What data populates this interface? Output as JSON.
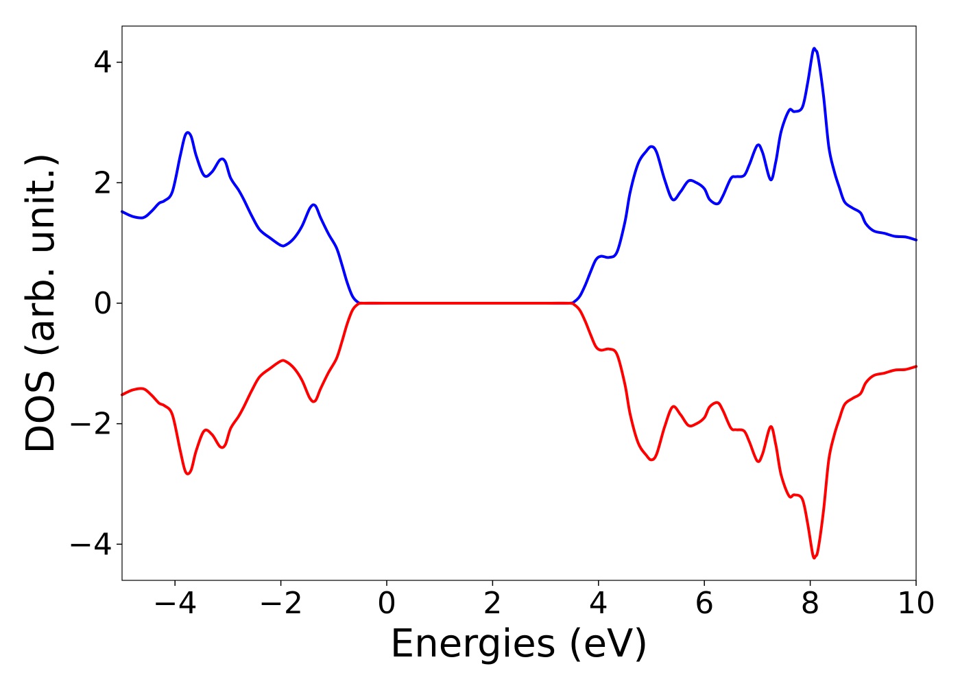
{
  "chart_data": {
    "type": "line",
    "title": "",
    "xlabel": "Energies (eV)",
    "ylabel": "DOS (arb. unit.)",
    "xlim": [
      -5,
      10
    ],
    "ylim": [
      -4.6,
      4.6
    ],
    "xticks": [
      -4,
      -2,
      0,
      2,
      4,
      6,
      8,
      10
    ],
    "xtick_labels": [
      "−4",
      "−2",
      "0",
      "2",
      "4",
      "6",
      "8",
      "10"
    ],
    "yticks": [
      4,
      2,
      0,
      -2,
      -4
    ],
    "ytick_labels": [
      "4",
      "2",
      "0",
      "−2",
      "−4"
    ],
    "grid": false,
    "legend": "none",
    "series": [
      {
        "color": "#0000ff",
        "x": [
          -5.0,
          -4.8,
          -4.6,
          -4.45,
          -4.3,
          -4.2,
          -4.05,
          -3.9,
          -3.8,
          -3.7,
          -3.6,
          -3.45,
          -3.3,
          -3.15,
          -3.05,
          -2.95,
          -2.8,
          -2.7,
          -2.55,
          -2.4,
          -2.2,
          -2.0,
          -1.9,
          -1.75,
          -1.6,
          -1.45,
          -1.35,
          -1.25,
          -1.1,
          -0.95,
          -0.85,
          -0.75,
          -0.65,
          -0.55,
          -0.45,
          0.0,
          1.0,
          2.0,
          3.0,
          3.45,
          3.55,
          3.65,
          3.75,
          3.85,
          3.95,
          4.05,
          4.2,
          4.35,
          4.5,
          4.6,
          4.75,
          4.9,
          5.0,
          5.1,
          5.25,
          5.4,
          5.55,
          5.7,
          5.85,
          6.0,
          6.1,
          6.25,
          6.35,
          6.5,
          6.6,
          6.75,
          6.85,
          7.0,
          7.1,
          7.25,
          7.35,
          7.45,
          7.6,
          7.7,
          7.85,
          7.95,
          8.05,
          8.1,
          8.15,
          8.25,
          8.35,
          8.45,
          8.55,
          8.65,
          8.8,
          8.95,
          9.05,
          9.2,
          9.4,
          9.6,
          9.8,
          10.0
        ],
        "y": [
          1.52,
          1.44,
          1.42,
          1.52,
          1.66,
          1.7,
          1.85,
          2.45,
          2.8,
          2.78,
          2.45,
          2.12,
          2.18,
          2.38,
          2.35,
          2.08,
          1.88,
          1.72,
          1.45,
          1.22,
          1.08,
          0.96,
          0.97,
          1.08,
          1.28,
          1.58,
          1.62,
          1.42,
          1.15,
          0.92,
          0.65,
          0.35,
          0.12,
          0.02,
          0.0,
          0.0,
          0.0,
          0.0,
          0.0,
          0.0,
          0.03,
          0.12,
          0.3,
          0.52,
          0.72,
          0.78,
          0.76,
          0.85,
          1.35,
          1.85,
          2.32,
          2.52,
          2.6,
          2.5,
          2.05,
          1.72,
          1.85,
          2.03,
          2.0,
          1.9,
          1.72,
          1.65,
          1.78,
          2.07,
          2.1,
          2.12,
          2.3,
          2.62,
          2.5,
          2.05,
          2.35,
          2.85,
          3.2,
          3.18,
          3.25,
          3.65,
          4.18,
          4.2,
          4.08,
          3.45,
          2.6,
          2.2,
          1.92,
          1.68,
          1.58,
          1.5,
          1.32,
          1.2,
          1.16,
          1.11,
          1.1,
          1.05
        ]
      },
      {
        "color": "#ff0000",
        "x": [
          -5.0,
          -4.8,
          -4.6,
          -4.45,
          -4.3,
          -4.2,
          -4.05,
          -3.9,
          -3.8,
          -3.7,
          -3.6,
          -3.45,
          -3.3,
          -3.15,
          -3.05,
          -2.95,
          -2.8,
          -2.7,
          -2.55,
          -2.4,
          -2.2,
          -2.0,
          -1.9,
          -1.75,
          -1.6,
          -1.45,
          -1.35,
          -1.25,
          -1.1,
          -0.95,
          -0.85,
          -0.75,
          -0.65,
          -0.55,
          -0.45,
          0.0,
          1.0,
          2.0,
          3.0,
          3.45,
          3.55,
          3.65,
          3.75,
          3.85,
          3.95,
          4.05,
          4.2,
          4.35,
          4.5,
          4.6,
          4.75,
          4.9,
          5.0,
          5.1,
          5.25,
          5.4,
          5.55,
          5.7,
          5.85,
          6.0,
          6.1,
          6.25,
          6.35,
          6.5,
          6.6,
          6.75,
          6.85,
          7.0,
          7.1,
          7.25,
          7.35,
          7.45,
          7.6,
          7.7,
          7.85,
          7.95,
          8.05,
          8.1,
          8.15,
          8.25,
          8.35,
          8.45,
          8.55,
          8.65,
          8.8,
          8.95,
          9.05,
          9.2,
          9.4,
          9.6,
          9.8,
          10.0
        ],
        "y": [
          -1.52,
          -1.44,
          -1.42,
          -1.52,
          -1.66,
          -1.7,
          -1.85,
          -2.45,
          -2.8,
          -2.78,
          -2.45,
          -2.12,
          -2.18,
          -2.38,
          -2.35,
          -2.08,
          -1.88,
          -1.72,
          -1.45,
          -1.22,
          -1.08,
          -0.96,
          -0.97,
          -1.08,
          -1.28,
          -1.58,
          -1.62,
          -1.42,
          -1.15,
          -0.92,
          -0.65,
          -0.35,
          -0.12,
          -0.02,
          0.0,
          0.0,
          0.0,
          0.0,
          0.0,
          0.0,
          -0.03,
          -0.12,
          -0.3,
          -0.52,
          -0.72,
          -0.78,
          -0.76,
          -0.85,
          -1.35,
          -1.85,
          -2.32,
          -2.52,
          -2.6,
          -2.5,
          -2.05,
          -1.72,
          -1.85,
          -2.03,
          -2.0,
          -1.9,
          -1.72,
          -1.65,
          -1.78,
          -2.07,
          -2.1,
          -2.12,
          -2.3,
          -2.62,
          -2.5,
          -2.05,
          -2.35,
          -2.85,
          -3.2,
          -3.18,
          -3.25,
          -3.65,
          -4.18,
          -4.2,
          -4.08,
          -3.45,
          -2.6,
          -2.2,
          -1.92,
          -1.68,
          -1.58,
          -1.5,
          -1.32,
          -1.2,
          -1.16,
          -1.11,
          -1.1,
          -1.05
        ]
      }
    ]
  }
}
